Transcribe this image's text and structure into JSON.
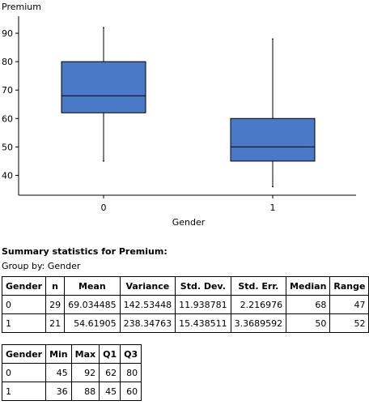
{
  "chart_data": {
    "type": "boxplot",
    "ylabel": "Premium",
    "xlabel": "Gender",
    "ylim": [
      33,
      96
    ],
    "yticks": [
      40,
      50,
      60,
      70,
      80,
      90
    ],
    "categories": [
      "0",
      "1"
    ],
    "boxes": [
      {
        "category": "0",
        "min": 45,
        "q1": 62,
        "median": 68,
        "q3": 80,
        "max": 92
      },
      {
        "category": "1",
        "min": 36,
        "q1": 45,
        "median": 50,
        "q3": 60,
        "max": 88
      }
    ],
    "box_color": "#4a7ac7",
    "grid": false
  },
  "summary": {
    "heading": "Summary statistics for Premium:",
    "group_by": "Group by: Gender",
    "table1": {
      "headers": [
        "Gender",
        "n",
        "Mean",
        "Variance",
        "Std. Dev.",
        "Std. Err.",
        "Median",
        "Range"
      ],
      "rows": [
        [
          "0",
          "29",
          "69.034485",
          "142.53448",
          "11.938781",
          "2.216976",
          "68",
          "47"
        ],
        [
          "1",
          "21",
          "54.61905",
          "238.34763",
          "15.438511",
          "3.3689592",
          "50",
          "52"
        ]
      ]
    },
    "table2": {
      "headers": [
        "Gender",
        "Min",
        "Max",
        "Q1",
        "Q3"
      ],
      "rows": [
        [
          "0",
          "45",
          "92",
          "62",
          "80"
        ],
        [
          "1",
          "36",
          "88",
          "45",
          "60"
        ]
      ]
    }
  }
}
